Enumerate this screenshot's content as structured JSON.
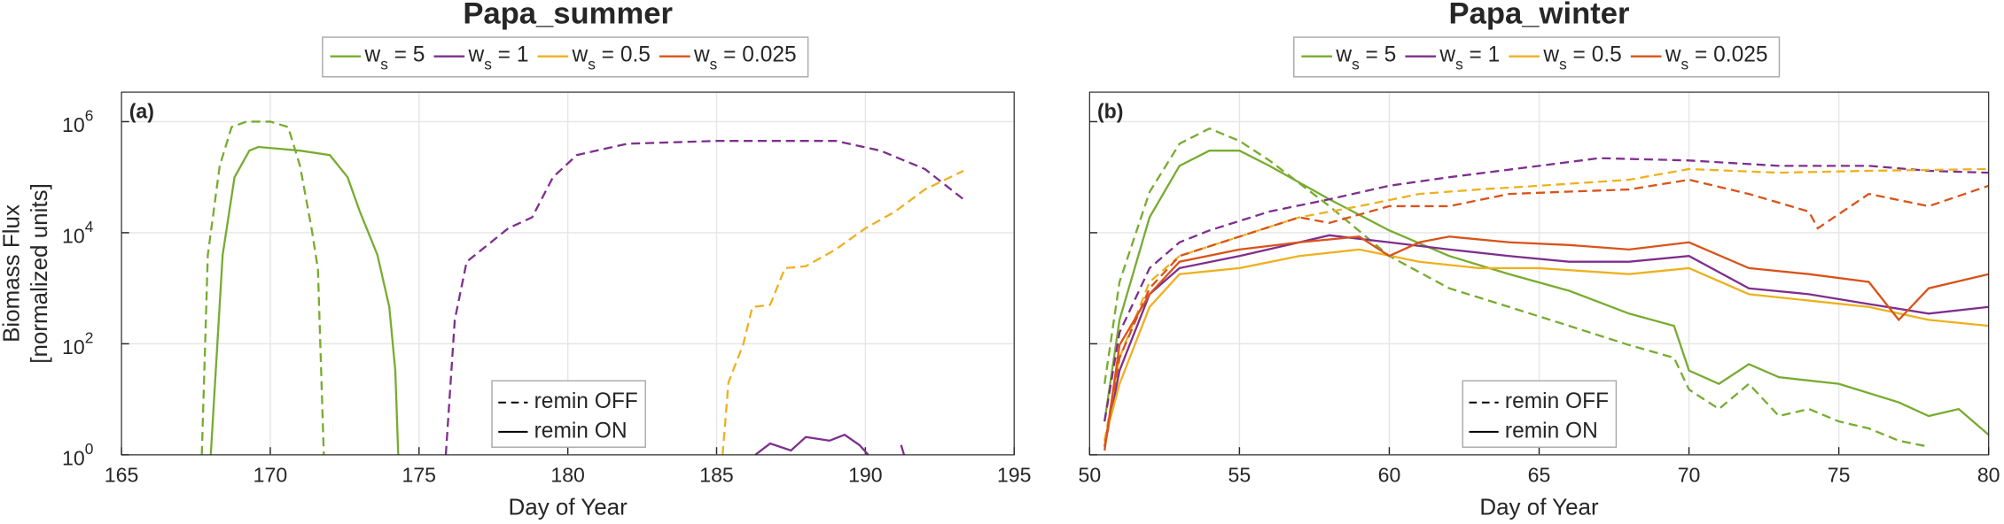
{
  "chart_data": [
    {
      "type": "line",
      "title": "Papa_summer",
      "panel_label": "(a)",
      "xlabel": "Day of Year",
      "ylabel": [
        "Biomass Flux",
        "[normalized units]"
      ],
      "xlim": [
        165,
        195
      ],
      "xticks": [
        165,
        170,
        175,
        180,
        185,
        190,
        195
      ],
      "ylim": [
        1,
        3400000
      ],
      "ylog": true,
      "grid": true,
      "yticks": [
        {
          "value": 1,
          "label": "10",
          "exponent": "0"
        },
        {
          "value": 100,
          "label": "10",
          "exponent": "2"
        },
        {
          "value": 10000,
          "label": "10",
          "exponent": "4"
        },
        {
          "value": 1000000,
          "label": "10",
          "exponent": "6"
        }
      ],
      "groups": [
        {
          "name": "ws = 5",
          "color": "#77ac30"
        },
        {
          "name": "ws = 1",
          "color": "#7e2f8e"
        },
        {
          "name": "ws = 0.5",
          "color": "#edb120"
        },
        {
          "name": "ws = 0.025",
          "color": "#d95319"
        }
      ],
      "remin_legend": [
        {
          "label": "remin OFF",
          "dashed": true
        },
        {
          "label": "remin ON",
          "dashed": false
        }
      ],
      "series": [
        {
          "group": 0,
          "remin": 0,
          "x": [
            167.7,
            167.9,
            168.3,
            168.7,
            169.2,
            170,
            170.6,
            171,
            171.4,
            171.6,
            171.8
          ],
          "values": [
            1,
            4000,
            160000,
            800000,
            1000000,
            1000000,
            800000,
            160000,
            11000,
            2200,
            1
          ]
        },
        {
          "group": 0,
          "remin": 1,
          "x": [
            168,
            168.4,
            168.8,
            169.3,
            169.6,
            171,
            172,
            172.6,
            173,
            173.6,
            174,
            174.2,
            174.3
          ],
          "values": [
            1,
            4000,
            100000,
            300000,
            350000,
            300000,
            250000,
            100000,
            25000,
            4000,
            460,
            33,
            1
          ]
        },
        {
          "group": 1,
          "remin": 0,
          "x": [
            175.9,
            176.2,
            176.6,
            177.3,
            178,
            178.8,
            179.5,
            180.3,
            182,
            185,
            189,
            190.5,
            192,
            193.3
          ],
          "values": [
            1,
            270,
            3000,
            6000,
            12000,
            19000,
            100000,
            250000,
            400000,
            450000,
            450000,
            300000,
            140000,
            40000
          ]
        },
        {
          "group": 1,
          "remin": 1,
          "x": [
            186.3,
            186.8,
            187.5,
            188,
            188.8,
            189.3,
            189.8,
            190.1,
            190.6,
            191.2,
            191.3
          ],
          "values": [
            1,
            1.6,
            1.2,
            2.1,
            1.8,
            2.3,
            1.5,
            1,
            null,
            1.5,
            1
          ]
        },
        {
          "group": 2,
          "remin": 0,
          "x": [
            185.2,
            185.4,
            185.9,
            186.2,
            186.8,
            187.3,
            188,
            189,
            190,
            191,
            192,
            193.3
          ],
          "values": [
            1,
            20,
            100,
            460,
            500,
            2300,
            2500,
            5000,
            12000,
            24000,
            60000,
            130000
          ]
        }
      ]
    },
    {
      "type": "line",
      "title": "Papa_winter",
      "panel_label": "(b)",
      "xlabel": "Day of Year",
      "xlim": [
        50,
        80
      ],
      "xticks": [
        50,
        55,
        60,
        65,
        70,
        75,
        80
      ],
      "ylim": [
        1,
        3400000
      ],
      "ylog": true,
      "grid": true,
      "ytick_labels": false,
      "yticks": [
        1,
        100,
        10000,
        1000000
      ],
      "groups": [
        {
          "name": "ws = 5",
          "color": "#77ac30"
        },
        {
          "name": "ws = 1",
          "color": "#7e2f8e"
        },
        {
          "name": "ws = 0.5",
          "color": "#edb120"
        },
        {
          "name": "ws = 0.025",
          "color": "#d95319"
        }
      ],
      "remin_legend": [
        {
          "label": "remin OFF",
          "dashed": true
        },
        {
          "label": "remin ON",
          "dashed": false
        }
      ],
      "series": [
        {
          "group": 0,
          "remin": 0,
          "x": [
            50.5,
            51,
            52,
            53,
            54,
            55,
            56,
            58,
            60,
            62,
            64,
            66,
            68,
            69.5,
            70,
            71,
            72,
            73,
            74,
            75,
            76,
            77,
            78
          ],
          "values": [
            19,
            1300,
            54000,
            400000,
            750000,
            450000,
            200000,
            30000,
            3800,
            1000,
            460,
            210,
            95,
            56,
            15,
            6.7,
            19,
            5,
            6.7,
            4,
            3,
            1.8,
            1.4
          ]
        },
        {
          "group": 0,
          "remin": 1,
          "x": [
            50.5,
            51,
            52,
            53,
            54,
            55,
            56,
            58,
            60,
            62,
            64,
            66,
            68,
            69.5,
            70,
            71,
            72,
            73,
            75,
            77,
            78,
            79,
            80
          ],
          "values": [
            4,
            270,
            19000,
            160000,
            300000,
            300000,
            160000,
            40000,
            11000,
            3800,
            1800,
            900,
            350,
            210,
            33,
            19,
            43,
            25,
            19,
            8.8,
            5,
            6.7,
            2.3
          ]
        },
        {
          "group": 1,
          "remin": 0,
          "x": [
            50.5,
            51,
            52,
            53,
            54,
            56,
            58,
            60,
            62,
            65,
            67,
            70,
            73,
            76,
            78,
            80
          ],
          "values": [
            4,
            160,
            2300,
            6700,
            11000,
            24000,
            40000,
            70000,
            100000,
            160000,
            220000,
            200000,
            160000,
            160000,
            130000,
            120000
          ]
        },
        {
          "group": 1,
          "remin": 1,
          "x": [
            50.5,
            51,
            52,
            53,
            55,
            57,
            58,
            60,
            62,
            64,
            66,
            68,
            70,
            72,
            74,
            76,
            78,
            80
          ],
          "values": [
            1.4,
            33,
            780,
            2300,
            3800,
            6700,
            9000,
            6700,
            5000,
            3800,
            3000,
            3000,
            3800,
            1000,
            780,
            520,
            350,
            460
          ]
        },
        {
          "group": 2,
          "remin": 0,
          "x": [
            50.5,
            51,
            52,
            53,
            55,
            57,
            59,
            61,
            63,
            65,
            68,
            70,
            73,
            76,
            80
          ],
          "values": [
            1.8,
            56,
            1300,
            3800,
            8500,
            19000,
            30000,
            50000,
            60000,
            70000,
            90000,
            140000,
            120000,
            130000,
            140000
          ]
        },
        {
          "group": 2,
          "remin": 1,
          "x": [
            50.5,
            51,
            52,
            53,
            55,
            57,
            59,
            61,
            63,
            65,
            68,
            70,
            72,
            74,
            76,
            78,
            80
          ],
          "values": [
            1.8,
            19,
            460,
            1800,
            2300,
            3800,
            5000,
            3000,
            2300,
            2300,
            1800,
            2300,
            780,
            600,
            460,
            270,
            210
          ]
        },
        {
          "group": 3,
          "remin": 0,
          "x": [
            50.5,
            51,
            52,
            53,
            55,
            57,
            58,
            60,
            62,
            64,
            66,
            68,
            70,
            72,
            74,
            74.3,
            76,
            78,
            80
          ],
          "values": [
            1.4,
            56,
            1000,
            3800,
            8500,
            19000,
            15000,
            30000,
            30000,
            50000,
            55000,
            60000,
            90000,
            50000,
            24000,
            12000,
            50000,
            30000,
            70000
          ]
        },
        {
          "group": 3,
          "remin": 1,
          "x": [
            50.5,
            51,
            52,
            53,
            55,
            57,
            59,
            60,
            61,
            62,
            64,
            66,
            68,
            70,
            72,
            74,
            76,
            77,
            78,
            80
          ],
          "values": [
            1.2,
            95,
            780,
            3000,
            5000,
            6700,
            8500,
            3800,
            6700,
            8500,
            6700,
            6000,
            5000,
            6700,
            2300,
            1800,
            1300,
            270,
            1000,
            1800
          ]
        }
      ]
    }
  ]
}
